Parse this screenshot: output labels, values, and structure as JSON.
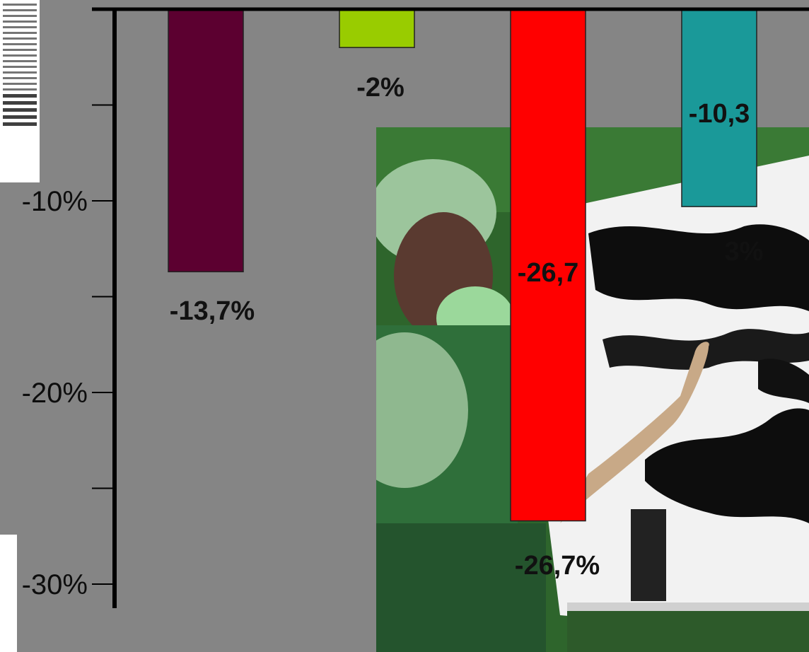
{
  "chart_data": {
    "type": "bar",
    "categories": [
      "",
      "",
      "",
      ""
    ],
    "values": [
      -13.7,
      -2,
      -26.7,
      -10.3
    ],
    "colors": [
      "#5c0030",
      "#99cc00",
      "#ff0000",
      "#1a9999"
    ],
    "data_labels": [
      "-13,7%",
      "-2%",
      "-26,7%",
      "-10,3"
    ],
    "data_labels_extra": [
      "",
      "",
      "-26,7",
      "3%"
    ],
    "ylim": [
      -31,
      0
    ],
    "y_ticks": [
      0,
      -5,
      -10,
      -15,
      -20,
      -25,
      -30
    ],
    "y_tick_labels": [
      "",
      "",
      "-10%",
      "",
      "-20%",
      "",
      "-30%"
    ],
    "title": "",
    "xlabel": "",
    "ylabel": "",
    "grid": false,
    "legend": "none"
  },
  "colors": {
    "background": "#858585",
    "axis": "#000000",
    "photo_green": "#2f6a2f",
    "screen_white": "#ffffff"
  }
}
